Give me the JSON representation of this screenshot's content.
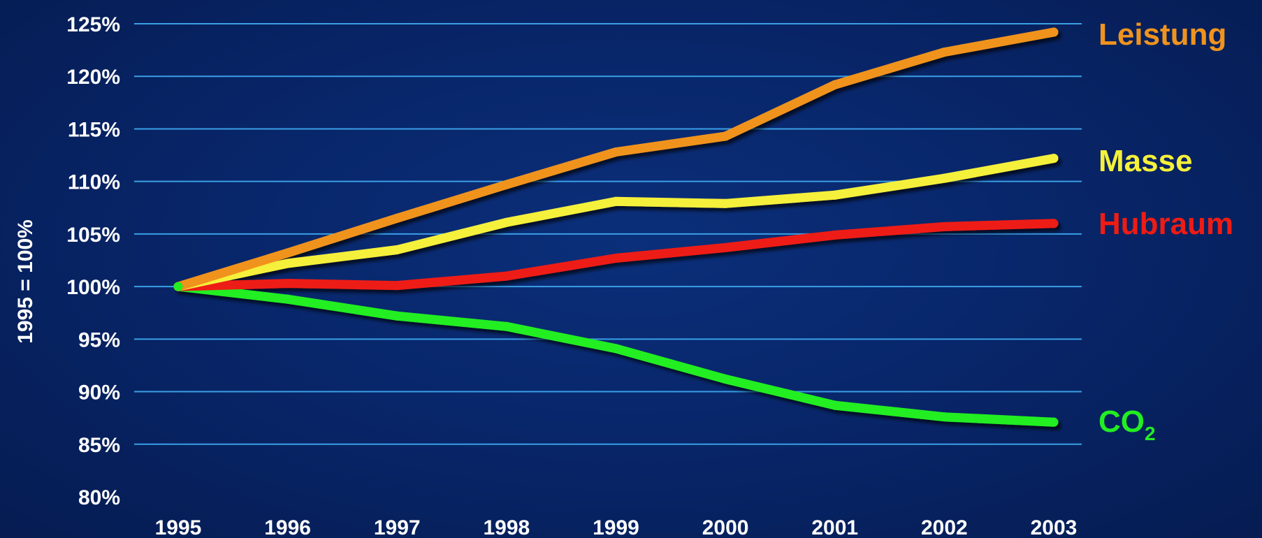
{
  "chart_data": {
    "type": "line",
    "ylabel": "1995 = 100%",
    "x": [
      "1995",
      "1996",
      "1997",
      "1998",
      "1999",
      "2000",
      "2001",
      "2002",
      "2003"
    ],
    "y_ticks": [
      "80%",
      "85%",
      "90%",
      "95%",
      "100%",
      "105%",
      "110%",
      "115%",
      "120%",
      "125%"
    ],
    "ylim": [
      80,
      125
    ],
    "grid": true,
    "legend": "inline labels at line ends",
    "series": [
      {
        "name": "Leistung",
        "color": "#f0931e",
        "values": [
          100,
          103.2,
          106.5,
          109.7,
          112.8,
          114.3,
          119.2,
          122.3,
          124.2
        ]
      },
      {
        "name": "Masse",
        "color": "#f5f03a",
        "values": [
          100,
          102.2,
          103.5,
          106.1,
          108.1,
          107.9,
          108.7,
          110.3,
          112.2
        ]
      },
      {
        "name": "Hubraum",
        "color": "#ee1c14",
        "values": [
          100,
          100.3,
          100.1,
          101.0,
          102.7,
          103.7,
          104.9,
          105.7,
          106.0
        ]
      },
      {
        "name_main": "CO",
        "name_sub": "2",
        "color": "#22ee22",
        "values": [
          100,
          98.8,
          97.2,
          96.2,
          94.1,
          91.2,
          88.7,
          87.6,
          87.1
        ]
      }
    ]
  }
}
